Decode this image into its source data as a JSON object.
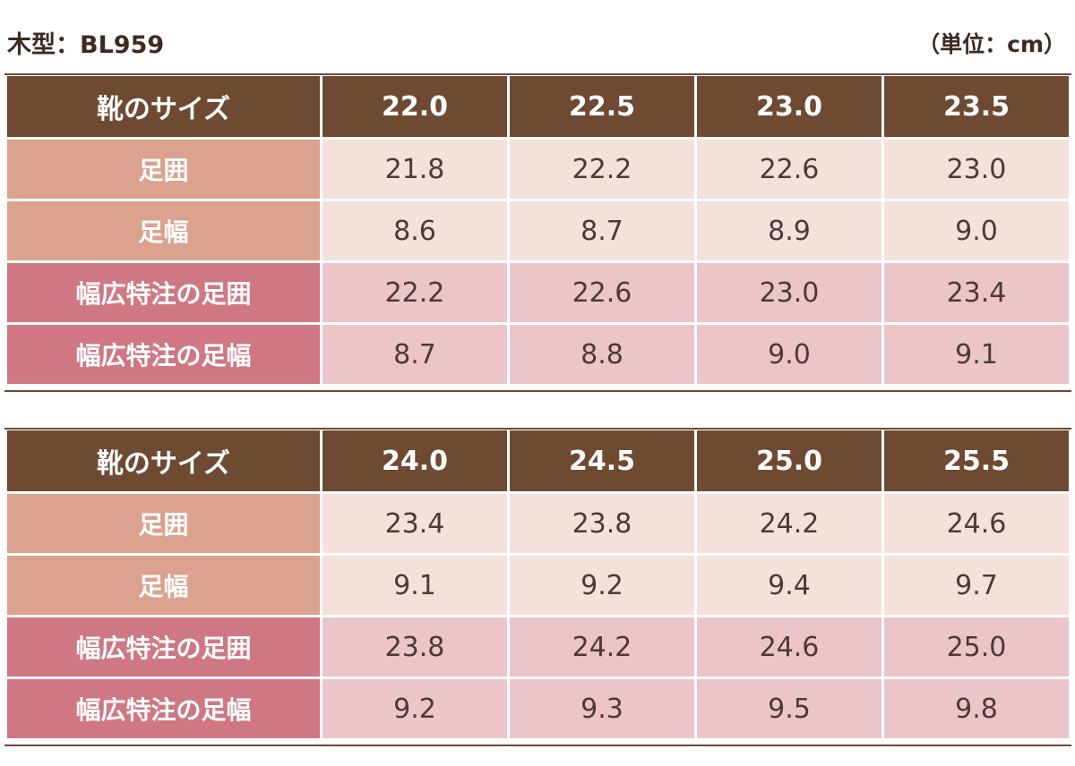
{
  "header": {
    "title": "木型：BL959",
    "unit": "（単位：cm）"
  },
  "colors": {
    "header_brown": "#6e4a32",
    "label_salmon": "#dba28e",
    "label_rose": "#cf7884",
    "value_light": "#f4e1dc",
    "value_pink": "#ebc5ca"
  },
  "tables": [
    {
      "header_label": "靴のサイズ",
      "sizes": [
        "22.0",
        "22.5",
        "23.0",
        "23.5"
      ],
      "rows": [
        {
          "label": "足囲",
          "values": [
            "21.8",
            "22.2",
            "22.6",
            "23.0"
          ]
        },
        {
          "label": "足幅",
          "values": [
            "8.6",
            "8.7",
            "8.9",
            "9.0"
          ]
        },
        {
          "label": "幅広特注の足囲",
          "values": [
            "22.2",
            "22.6",
            "23.0",
            "23.4"
          ]
        },
        {
          "label": "幅広特注の足幅",
          "values": [
            "8.7",
            "8.8",
            "9.0",
            "9.1"
          ]
        }
      ]
    },
    {
      "header_label": "靴のサイズ",
      "sizes": [
        "24.0",
        "24.5",
        "25.0",
        "25.5"
      ],
      "rows": [
        {
          "label": "足囲",
          "values": [
            "23.4",
            "23.8",
            "24.2",
            "24.6"
          ]
        },
        {
          "label": "足幅",
          "values": [
            "9.1",
            "9.2",
            "9.4",
            "9.7"
          ]
        },
        {
          "label": "幅広特注の足囲",
          "values": [
            "23.8",
            "24.2",
            "24.6",
            "25.0"
          ]
        },
        {
          "label": "幅広特注の足幅",
          "values": [
            "9.2",
            "9.3",
            "9.5",
            "9.8"
          ]
        }
      ]
    }
  ]
}
